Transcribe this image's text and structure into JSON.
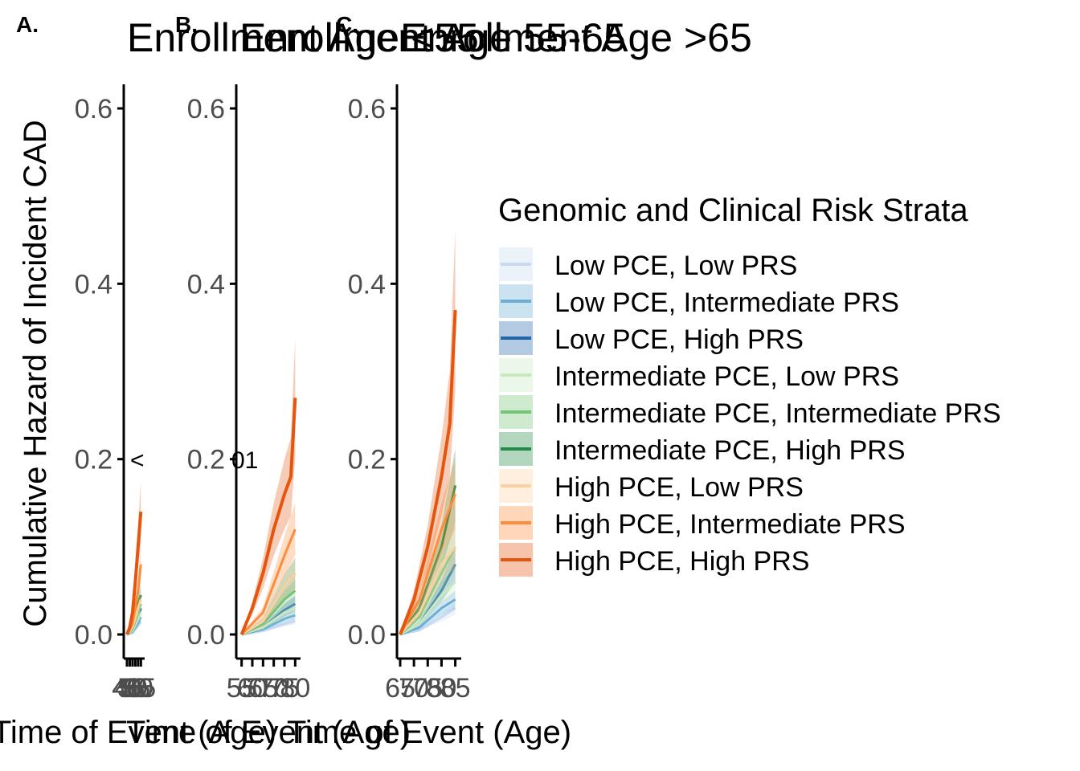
{
  "figure": {
    "y_axis_label": "Cumulative Hazard of Incident CAD",
    "x_axis_label": "Time of Event (Age)",
    "legend_title": "Genomic and Clinical Risk Strata",
    "colors": {
      "low_pce": [
        "#c6dbef",
        "#6baed6",
        "#2166ac"
      ],
      "intermediate_pce": [
        "#c7e9c0",
        "#74c476",
        "#238b45"
      ],
      "high_pce": [
        "#fdd0a2",
        "#fd8d3c",
        "#e6550d"
      ]
    }
  },
  "chart_data": [
    {
      "type": "line",
      "panel_label": "A.",
      "title": "Enrollment Age <55",
      "xlabel": "Time of Event (Age)",
      "ylabel": "Cumulative Hazard of Incident CAD",
      "ylim": [
        0,
        0.6
      ],
      "yticks": [
        "0.0",
        "0.2",
        "0.4",
        "0.6"
      ],
      "xticks": [
        "40",
        "45",
        "50",
        "55",
        "60",
        "65"
      ],
      "xlim": [
        40,
        66
      ],
      "annotation": "<",
      "series": [
        {
          "name": "Low PCE, Low PRS",
          "x": [
            40,
            50,
            60,
            65
          ],
          "y": [
            0,
            0.002,
            0.01,
            0.015
          ]
        },
        {
          "name": "Low PCE, Intermediate PRS",
          "x": [
            40,
            50,
            60,
            65
          ],
          "y": [
            0,
            0.003,
            0.013,
            0.02
          ]
        },
        {
          "name": "Low PCE, High PRS",
          "x": [
            40,
            50,
            60,
            65
          ],
          "y": [
            0,
            0.004,
            0.02,
            0.03
          ]
        },
        {
          "name": "Intermediate PCE, Low PRS",
          "x": [
            40,
            50,
            60,
            65
          ],
          "y": [
            0,
            0.004,
            0.018,
            0.025
          ]
        },
        {
          "name": "Intermediate PCE, Intermediate PRS",
          "x": [
            40,
            50,
            60,
            65
          ],
          "y": [
            0,
            0.006,
            0.025,
            0.035
          ]
        },
        {
          "name": "Intermediate PCE, High PRS",
          "x": [
            40,
            50,
            60,
            65
          ],
          "y": [
            0,
            0.008,
            0.035,
            0.045
          ]
        },
        {
          "name": "High PCE, Low PRS",
          "x": [
            40,
            50,
            60,
            65
          ],
          "y": [
            0,
            0.008,
            0.03,
            0.04
          ]
        },
        {
          "name": "High PCE, Intermediate PRS",
          "x": [
            40,
            50,
            60,
            65
          ],
          "y": [
            0,
            0.012,
            0.05,
            0.08
          ]
        },
        {
          "name": "High PCE, High PRS",
          "x": [
            40,
            45,
            50,
            55,
            60,
            65
          ],
          "y": [
            0,
            0.008,
            0.025,
            0.06,
            0.1,
            0.14
          ]
        }
      ]
    },
    {
      "type": "line",
      "panel_label": "B.",
      "title": "Enrollment Age 55-65",
      "xlabel": "Time of Event (Age)",
      "ylabel": "",
      "ylim": [
        0,
        0.6
      ],
      "yticks": [
        "0.0",
        "0.2",
        "0.4",
        "0.6"
      ],
      "xticks": [
        "55",
        "60",
        "65",
        "70",
        "75",
        "80"
      ],
      "xlim": [
        54,
        81
      ],
      "annotation": "01",
      "series": [
        {
          "name": "Low PCE, Low PRS",
          "x": [
            55,
            65,
            75,
            80
          ],
          "y": [
            0,
            0.004,
            0.012,
            0.015
          ]
        },
        {
          "name": "Low PCE, Intermediate PRS",
          "x": [
            55,
            65,
            75,
            80
          ],
          "y": [
            0,
            0.006,
            0.018,
            0.022
          ]
        },
        {
          "name": "Low PCE, High PRS",
          "x": [
            55,
            65,
            75,
            80
          ],
          "y": [
            0,
            0.008,
            0.028,
            0.035
          ]
        },
        {
          "name": "Intermediate PCE, Low PRS",
          "x": [
            55,
            65,
            75,
            80
          ],
          "y": [
            0,
            0.008,
            0.025,
            0.03
          ]
        },
        {
          "name": "Intermediate PCE, Intermediate PRS",
          "x": [
            55,
            65,
            75,
            80
          ],
          "y": [
            0,
            0.012,
            0.04,
            0.05
          ]
        },
        {
          "name": "Intermediate PCE, High PRS",
          "x": [
            55,
            65,
            75,
            80
          ],
          "y": [
            0,
            0.015,
            0.055,
            0.07
          ]
        },
        {
          "name": "High PCE, Low PRS",
          "x": [
            55,
            65,
            75,
            80
          ],
          "y": [
            0,
            0.015,
            0.055,
            0.07
          ]
        },
        {
          "name": "High PCE, Intermediate PRS",
          "x": [
            55,
            65,
            75,
            80
          ],
          "y": [
            0,
            0.025,
            0.09,
            0.12
          ]
        },
        {
          "name": "High PCE, High PRS",
          "x": [
            55,
            60,
            65,
            70,
            75,
            78,
            80
          ],
          "y": [
            0,
            0.03,
            0.07,
            0.12,
            0.16,
            0.18,
            0.27
          ]
        }
      ]
    },
    {
      "type": "line",
      "panel_label": "C.",
      "title": "Enrollment Age >65",
      "xlabel": "Time of Event (Age)",
      "ylabel": "",
      "ylim": [
        0,
        0.6
      ],
      "yticks": [
        "0.0",
        "0.2",
        "0.4",
        "0.6"
      ],
      "xticks": [
        "65",
        "70",
        "75",
        "80",
        "85"
      ],
      "xlim": [
        65,
        86
      ],
      "series": [
        {
          "name": "Low PCE, Low PRS",
          "x": [
            65,
            72,
            80,
            85
          ],
          "y": [
            0,
            0.005,
            0.02,
            0.03
          ]
        },
        {
          "name": "Low PCE, Intermediate PRS",
          "x": [
            65,
            72,
            80,
            85
          ],
          "y": [
            0,
            0.008,
            0.03,
            0.04
          ]
        },
        {
          "name": "Low PCE, High PRS",
          "x": [
            65,
            72,
            80,
            85
          ],
          "y": [
            0,
            0.012,
            0.05,
            0.08
          ]
        },
        {
          "name": "Intermediate PCE, Low PRS",
          "x": [
            65,
            72,
            80,
            85
          ],
          "y": [
            0,
            0.012,
            0.045,
            0.06
          ]
        },
        {
          "name": "Intermediate PCE, Intermediate PRS",
          "x": [
            65,
            72,
            80,
            85
          ],
          "y": [
            0,
            0.02,
            0.07,
            0.1
          ]
        },
        {
          "name": "Intermediate PCE, High PRS",
          "x": [
            65,
            72,
            80,
            85
          ],
          "y": [
            0,
            0.03,
            0.1,
            0.17
          ]
        },
        {
          "name": "High PCE, Low PRS",
          "x": [
            65,
            72,
            80,
            85
          ],
          "y": [
            0,
            0.025,
            0.08,
            0.1
          ]
        },
        {
          "name": "High PCE, Intermediate PRS",
          "x": [
            65,
            72,
            80,
            85
          ],
          "y": [
            0,
            0.04,
            0.12,
            0.16
          ]
        },
        {
          "name": "High PCE, High PRS",
          "x": [
            65,
            70,
            75,
            80,
            83,
            85
          ],
          "y": [
            0,
            0.04,
            0.1,
            0.18,
            0.24,
            0.37
          ]
        }
      ]
    }
  ]
}
